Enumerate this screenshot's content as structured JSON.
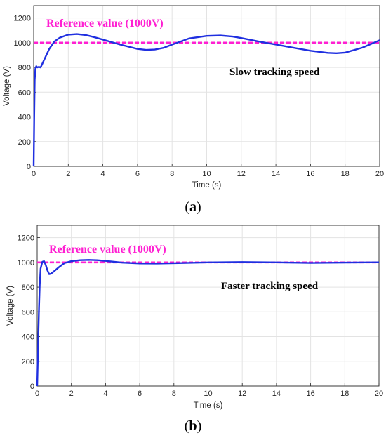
{
  "chart_data": [
    {
      "type": "line",
      "panel_label": "a",
      "xlabel": "Time (s)",
      "ylabel": "Voltage (V)",
      "xlim": [
        0,
        20
      ],
      "ylim": [
        0,
        1300
      ],
      "xticks": [
        0,
        2,
        4,
        6,
        8,
        10,
        12,
        14,
        16,
        18,
        20
      ],
      "yticks": [
        0,
        200,
        400,
        600,
        800,
        1000,
        1200
      ],
      "grid": true,
      "annotations": {
        "reference": "Reference value (1000V)",
        "note": "Slow tracking speed"
      },
      "reference_value": 1000,
      "colors": {
        "series": "#1f2fe0",
        "reference": "#ff1fd2"
      },
      "series": [
        {
          "x": [
            0,
            0.03,
            0.06,
            0.1,
            0.15,
            0.2,
            0.3,
            0.4,
            0.5,
            0.7,
            0.9,
            1.2,
            1.5,
            2.0,
            2.5,
            3.0,
            3.5,
            4.0,
            5.0,
            6.0,
            6.5,
            7.0,
            7.5,
            8.0,
            9.0,
            10.0,
            10.8,
            11.5,
            12.0,
            13.0,
            14.0,
            15.0,
            16.0,
            17.0,
            17.5,
            18.0,
            19.0,
            19.5,
            20.0
          ],
          "y": [
            0,
            400,
            700,
            790,
            810,
            800,
            805,
            800,
            830,
            890,
            950,
            1010,
            1040,
            1065,
            1070,
            1062,
            1045,
            1025,
            985,
            950,
            942,
            945,
            958,
            985,
            1035,
            1055,
            1058,
            1050,
            1038,
            1010,
            985,
            960,
            935,
            918,
            915,
            920,
            960,
            990,
            1020
          ]
        }
      ]
    },
    {
      "type": "line",
      "panel_label": "b",
      "xlabel": "Time (s)",
      "ylabel": "Voltage (V)",
      "xlim": [
        0,
        20
      ],
      "ylim": [
        0,
        1300
      ],
      "xticks": [
        0,
        2,
        4,
        6,
        8,
        10,
        12,
        14,
        16,
        18,
        20
      ],
      "yticks": [
        0,
        200,
        400,
        600,
        800,
        1000,
        1200
      ],
      "grid": true,
      "annotations": {
        "reference": "Reference value (1000V)",
        "note": "Faster tracking speed"
      },
      "reference_value": 1000,
      "colors": {
        "series": "#1f2fe0",
        "reference": "#ff1fd2"
      },
      "series": [
        {
          "x": [
            0,
            0.05,
            0.1,
            0.15,
            0.2,
            0.3,
            0.4,
            0.5,
            0.6,
            0.7,
            0.8,
            1.0,
            1.3,
            1.6,
            2.0,
            2.5,
            3.0,
            3.5,
            4.0,
            4.5,
            5.0,
            6.0,
            7.0,
            8.0,
            10.0,
            12.0,
            14.0,
            16.0,
            18.0,
            20.0
          ],
          "y": [
            0,
            300,
            600,
            820,
            950,
            1005,
            1010,
            980,
            935,
            905,
            908,
            930,
            965,
            995,
            1010,
            1018,
            1020,
            1018,
            1012,
            1005,
            998,
            992,
            991,
            994,
            1000,
            1003,
            1000,
            996,
            999,
            1001
          ]
        }
      ]
    }
  ]
}
